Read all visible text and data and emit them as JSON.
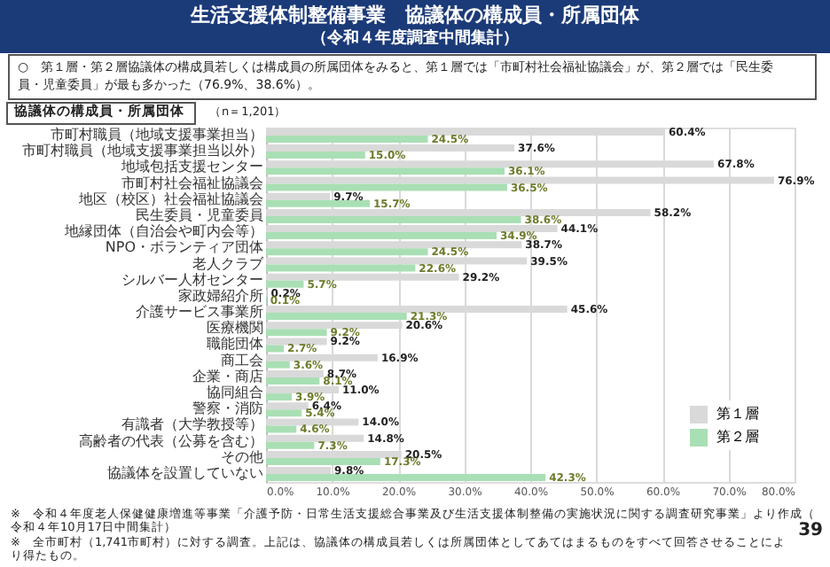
{
  "chart_data": {
    "type": "bar",
    "orientation": "horizontal",
    "title": "生活支援体制整備事業　協議体の構成員・所属団体",
    "subtitle": "（令和４年度調査中間集計）",
    "annotations": [
      "○　第１層・第２層協議体の構成員若しくは構成員の所属団体をみると、第１層では「市町村社会福祉協議会」が、第２層では「民生委員・児童委員」が最も多かった（76.9%、38.6%）。",
      "協議体の構成員・所属団体",
      "（n＝1,201）",
      "※　令和４年度老人保健健康増進等事業「介護予防・日常生活支援総合事業及び生活支援体制整備の実施状況に関する調査研究事業」より作成（令和４年10月17日中間集計）",
      "※　全市町村（1,741市町村）に対する調査。上記は、協議体の構成員若しくは所属団体としてあてはまるものをすべて回答させることにより得たもの。",
      "39"
    ],
    "categories": [
      "市町村職員（地域支援事業担当）",
      "市町村職員（地域支援事業担当以外）",
      "地域包括支援センター",
      "市町村社会福祉協議会",
      "地区（校区）社会福祉協議会",
      "民生委員・児童委員",
      "地縁団体（自治会や町内会等）",
      "NPO・ボランティア団体",
      "老人クラブ",
      "シルバー人材センター",
      "家政婦紹介所",
      "介護サービス事業所",
      "医療機関",
      "職能団体",
      "商工会",
      "企業・商店",
      "協同組合",
      "警察・消防",
      "有識者（大学教授等）",
      "高齢者の代表（公募を含む）",
      "その他",
      "協議体を設置していない"
    ],
    "series": [
      {
        "name": "第１層",
        "color": "#d9d9d9",
        "values": [
          60.4,
          37.6,
          67.8,
          76.9,
          9.7,
          58.2,
          44.1,
          38.7,
          39.5,
          29.2,
          0.2,
          45.6,
          20.6,
          9.2,
          16.9,
          8.7,
          11.0,
          6.4,
          14.0,
          14.8,
          20.5,
          9.8
        ],
        "value_labels": [
          "60.4%",
          "37.6%",
          "67.8%",
          "76.9%",
          "9.7%",
          "58.2%",
          "44.1%",
          "38.7%",
          "39.5%",
          "29.2%",
          "0.2%",
          "45.6%",
          "20.6%",
          "9.2%",
          "16.9%",
          "8.7%",
          "11.0%",
          "6.4%",
          "14.0%",
          "14.8%",
          "20.5%",
          "9.8%"
        ]
      },
      {
        "name": "第２層",
        "color": "#a9dfb4",
        "values": [
          24.5,
          15.0,
          36.1,
          36.5,
          15.7,
          38.6,
          34.9,
          24.5,
          22.6,
          5.7,
          0.1,
          21.3,
          9.2,
          2.7,
          3.6,
          8.1,
          3.9,
          5.4,
          4.6,
          7.3,
          17.3,
          42.3
        ],
        "value_labels": [
          "24.5%",
          "15.0%",
          "36.1%",
          "36.5%",
          "15.7%",
          "38.6%",
          "34.9%",
          "24.5%",
          "22.6%",
          "5.7%",
          "0.1%",
          "21.3%",
          "9.2%",
          "2.7%",
          "3.6%",
          "8.1%",
          "3.9%",
          "5.4%",
          "4.6%",
          "7.3%",
          "17.3%",
          "42.3%"
        ]
      }
    ],
    "xlim": [
      0,
      80
    ],
    "xticks": [
      {
        "value": 0,
        "label": "0.0%"
      },
      {
        "value": 10,
        "label": "10.0%"
      },
      {
        "value": 20,
        "label": "20.0%"
      },
      {
        "value": 30,
        "label": "30.0%"
      },
      {
        "value": 40,
        "label": "40.0%"
      },
      {
        "value": 50,
        "label": "50.0%"
      },
      {
        "value": 60,
        "label": "60.0%"
      },
      {
        "value": 70,
        "label": "70.0%"
      },
      {
        "value": 80,
        "label": "80.0%"
      }
    ],
    "grid": "x",
    "legend": "bottom right"
  }
}
